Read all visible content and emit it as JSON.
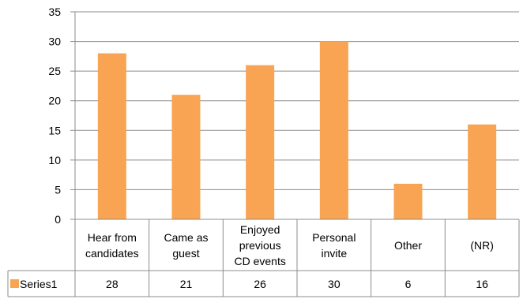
{
  "chart_data": {
    "type": "bar",
    "categories": [
      "Hear from\ncandidates",
      "Came as\nguest",
      "Enjoyed\nprevious\nCD events",
      "Personal\ninvite",
      "Other",
      "(NR)"
    ],
    "series": [
      {
        "name": "Series1",
        "values": [
          28,
          21,
          26,
          30,
          6,
          16
        ]
      }
    ],
    "ylim": [
      0,
      35
    ],
    "yticks": [
      0,
      5,
      10,
      15,
      20,
      25,
      30,
      35
    ],
    "grid": true,
    "legend": "data-table",
    "colors": {
      "bar": "#F8A452",
      "grid": "#8c8c8c",
      "table": "#8c8c8c"
    }
  }
}
